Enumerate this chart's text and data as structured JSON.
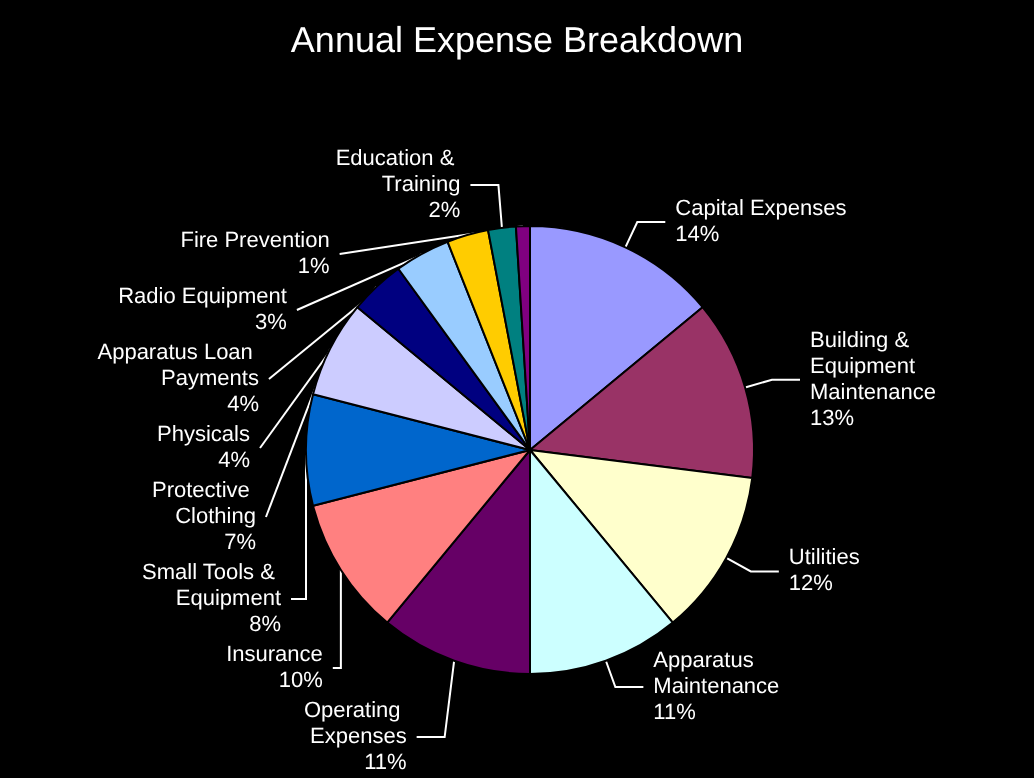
{
  "chart_data": {
    "type": "pie",
    "title": "Annual Expense Breakdown",
    "categories": [
      "Capital Expenses",
      "Building & Equipment Maintenance",
      "Utilities",
      "Apparatus Maintenance",
      "Operating Expenses",
      "Insurance",
      "Small Tools & Equipment",
      "Protective Clothing",
      "Physicals",
      "Apparatus Loan Payments",
      "Radio Equipment",
      "Education & Training",
      "Fire Prevention"
    ],
    "values": [
      14,
      13,
      12,
      11,
      11,
      10,
      8,
      7,
      4,
      4,
      3,
      2,
      1
    ],
    "value_labels": [
      "14%",
      "13%",
      "12%",
      "11%",
      "11%",
      "10%",
      "8%",
      "7%",
      "4%",
      "4%",
      "3%",
      "2%",
      "1%"
    ],
    "colors": [
      "#9999ff",
      "#993366",
      "#ffffcc",
      "#ccffff",
      "#660066",
      "#ff8080",
      "#0066cc",
      "#ccccff",
      "#000080",
      "#99ccff",
      "#ffcc00",
      "#008080",
      "#800080"
    ],
    "legend": false
  }
}
